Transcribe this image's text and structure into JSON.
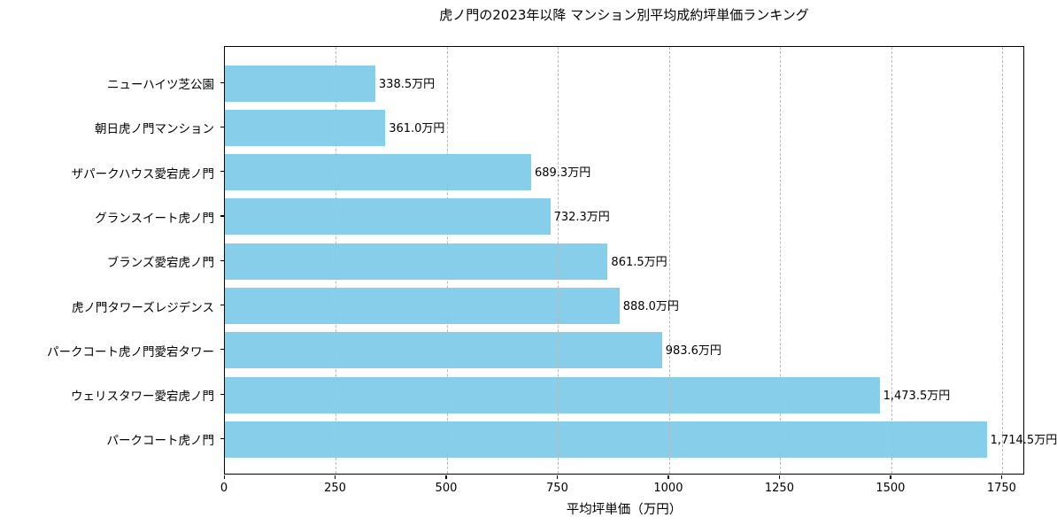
{
  "chart_data": {
    "type": "bar",
    "orientation": "horizontal",
    "title": "虎ノ門の2023年以降 マンション別平均成約坪単価ランキング",
    "xlabel": "平均坪単価（万円）",
    "ylabel": "",
    "categories": [
      "ニューハイツ芝公園",
      "朝日虎ノ門マンション",
      "ザパークハウス愛宕虎ノ門",
      "グランスイート虎ノ門",
      "ブランズ愛宕虎ノ門",
      "虎ノ門タワーズレジデンス",
      "パークコート虎ノ門愛宕タワー",
      "ウェリスタワー愛宕虎ノ門",
      "パークコート虎ノ門"
    ],
    "values": [
      338.5,
      361.0,
      689.3,
      732.3,
      861.5,
      888.0,
      983.6,
      1473.5,
      1714.5
    ],
    "value_labels": [
      "338.5万円",
      "361.0万円",
      "689.3万円",
      "732.3万円",
      "861.5万円",
      "888.0万円",
      "983.6万円",
      "1,473.5万円",
      "1,714.5万円"
    ],
    "x_ticks": [
      0,
      250,
      500,
      750,
      1000,
      1250,
      1500,
      1750
    ],
    "xlim": [
      0,
      1801
    ],
    "grid": "vertical-dashed",
    "legend": "none",
    "bar_color": "#87CEEB",
    "grid_color": "#b8b8b8",
    "spine_color": "#000000",
    "text_color": "#000000",
    "background_color": "#ffffff"
  }
}
